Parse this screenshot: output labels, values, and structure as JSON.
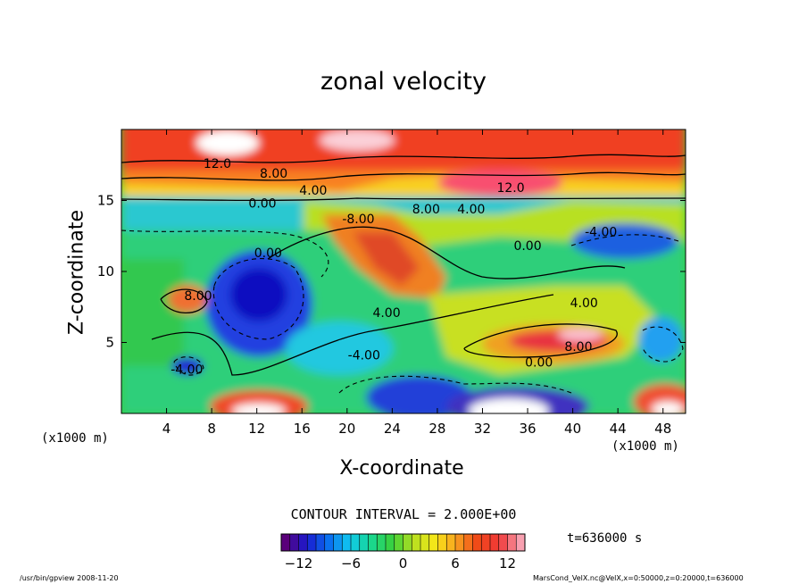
{
  "chart_data": {
    "type": "heatmap",
    "title": "zonal velocity",
    "xlabel": "X-coordinate",
    "ylabel": "Z-coordinate",
    "x_unit": "(x1000 m)",
    "xlim": [
      0,
      50
    ],
    "ylim": [
      0,
      20
    ],
    "x_ticks": [
      4,
      8,
      12,
      16,
      20,
      24,
      28,
      32,
      36,
      40,
      44,
      48
    ],
    "y_ticks": [
      5,
      10,
      15
    ],
    "colorbar": {
      "range": [
        -14,
        14
      ],
      "ticks": [
        -12,
        -6,
        0,
        6,
        12
      ],
      "palette": [
        "#5a007a",
        "#1a1ad0",
        "#0a6ef0",
        "#10c8f0",
        "#18d890",
        "#3ad03a",
        "#b8e020",
        "#f8e818",
        "#f8a020",
        "#f04818",
        "#f03838",
        "#f8a0b0"
      ]
    },
    "contour_interval": "CONTOUR INTERVAL = 2.000E+00",
    "contour_labels": [
      {
        "text": "12.0",
        "x": 8.5,
        "z": 17.3
      },
      {
        "text": "8.00",
        "x": 13.5,
        "z": 16.6
      },
      {
        "text": "4.00",
        "x": 17.0,
        "z": 15.4
      },
      {
        "text": "0.00",
        "x": 12.5,
        "z": 14.5
      },
      {
        "text": "-8.00",
        "x": 21.0,
        "z": 13.4
      },
      {
        "text": "8.00",
        "x": 27.0,
        "z": 14.1
      },
      {
        "text": "4.00",
        "x": 31.0,
        "z": 14.1
      },
      {
        "text": "12.0",
        "x": 34.5,
        "z": 15.6
      },
      {
        "text": "0.00",
        "x": 36.0,
        "z": 11.5
      },
      {
        "text": "0.00",
        "x": 13.0,
        "z": 11.0
      },
      {
        "text": "-4.00",
        "x": 42.5,
        "z": 12.5
      },
      {
        "text": "4.00",
        "x": 23.5,
        "z": 6.8
      },
      {
        "text": "4.00",
        "x": 41.0,
        "z": 7.5
      },
      {
        "text": "8.00",
        "x": 40.5,
        "z": 4.4
      },
      {
        "text": "-4.00",
        "x": 21.5,
        "z": 3.8
      },
      {
        "text": "0.00",
        "x": 37.0,
        "z": 3.3
      },
      {
        "text": "-4.00",
        "x": 5.8,
        "z": 2.8
      },
      {
        "text": "8.00",
        "x": 6.8,
        "z": 8.0
      }
    ],
    "time": "t=636000 s"
  },
  "footer": {
    "left": "/usr/bin/gpview   2008-11-20",
    "right": "MarsCond_VelX.nc@VelX,x=0:50000,z=0:20000,t=636000"
  }
}
